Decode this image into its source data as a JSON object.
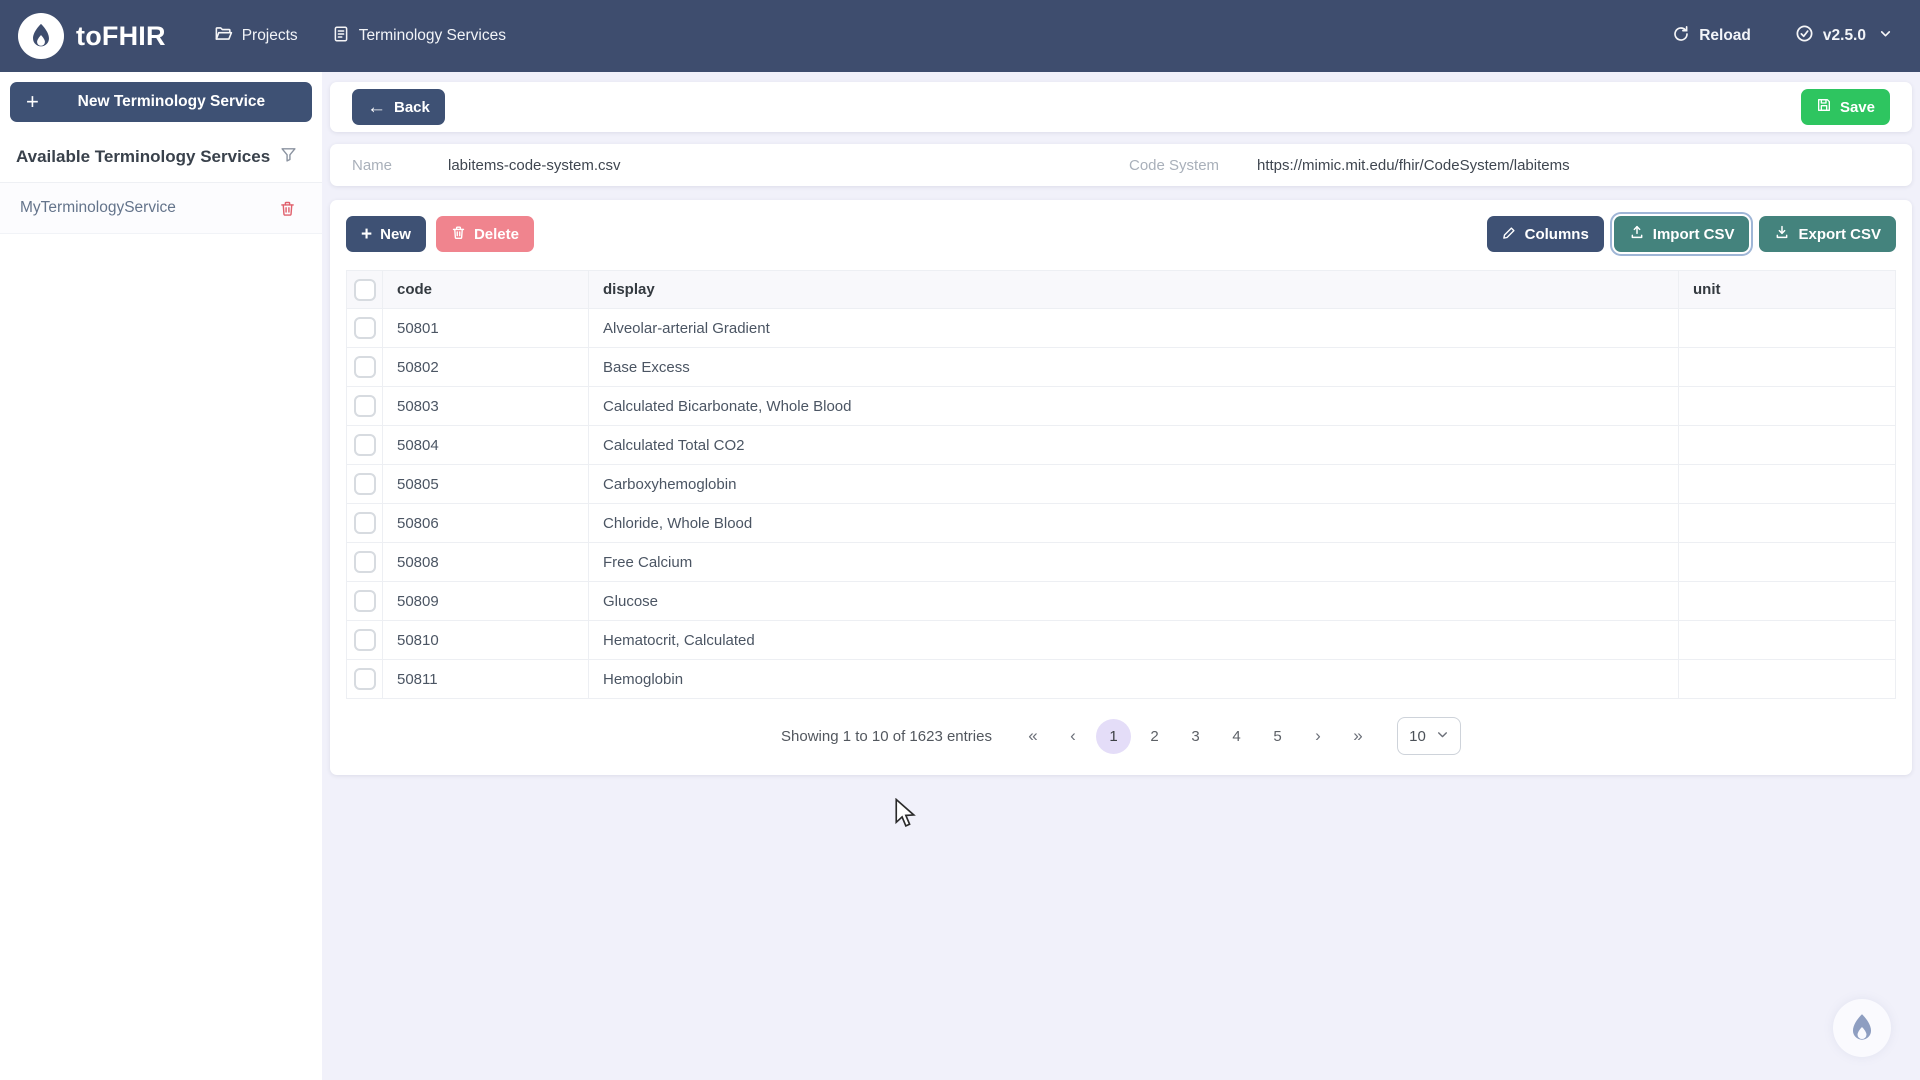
{
  "navbar": {
    "brand": "toFHIR",
    "items": [
      {
        "label": "Projects"
      },
      {
        "label": "Terminology Services"
      }
    ],
    "reload_label": "Reload",
    "version": "v2.5.0"
  },
  "sidebar": {
    "new_button_label": "New Terminology Service",
    "section_title": "Available Terminology Services",
    "services": [
      {
        "name": "MyTerminologyService"
      }
    ]
  },
  "header_bar": {
    "back_label": "Back",
    "save_label": "Save"
  },
  "details": {
    "name_label": "Name",
    "name_value": "labitems-code-system.csv",
    "code_system_label": "Code System",
    "code_system_value": "https://mimic.mit.edu/fhir/CodeSystem/labitems"
  },
  "toolbar": {
    "new_label": "New",
    "delete_label": "Delete",
    "columns_label": "Columns",
    "import_label": "Import CSV",
    "export_label": "Export CSV"
  },
  "table": {
    "columns": [
      "code",
      "display",
      "unit"
    ],
    "rows": [
      {
        "code": "50801",
        "display": "Alveolar-arterial Gradient",
        "unit": ""
      },
      {
        "code": "50802",
        "display": "Base Excess",
        "unit": ""
      },
      {
        "code": "50803",
        "display": "Calculated Bicarbonate, Whole Blood",
        "unit": ""
      },
      {
        "code": "50804",
        "display": "Calculated Total CO2",
        "unit": ""
      },
      {
        "code": "50805",
        "display": "Carboxyhemoglobin",
        "unit": ""
      },
      {
        "code": "50806",
        "display": "Chloride, Whole Blood",
        "unit": ""
      },
      {
        "code": "50808",
        "display": "Free Calcium",
        "unit": ""
      },
      {
        "code": "50809",
        "display": "Glucose",
        "unit": ""
      },
      {
        "code": "50810",
        "display": "Hematocrit, Calculated",
        "unit": ""
      },
      {
        "code": "50811",
        "display": "Hemoglobin",
        "unit": ""
      }
    ]
  },
  "pagination": {
    "summary": "Showing 1 to 10 of 1623 entries",
    "first_label": "«",
    "prev_label": "‹",
    "next_label": "›",
    "last_label": "»",
    "pages": [
      "1",
      "2",
      "3",
      "4",
      "5"
    ],
    "active_page": "1",
    "page_size": "10"
  },
  "colors": {
    "navbar_bg": "#3e4d6e",
    "primary_navy": "#3e5174",
    "save_green": "#2ec560",
    "delete_pink": "#f0848e",
    "csv_teal": "#44837d",
    "trash_red": "#e0606c",
    "page_bg": "#f1f1fa",
    "active_page_bg": "#e4ddf8"
  }
}
